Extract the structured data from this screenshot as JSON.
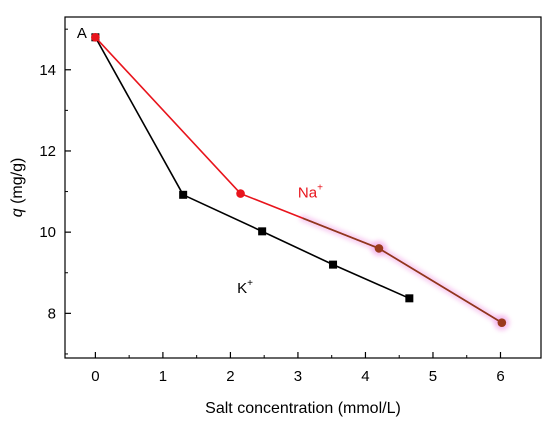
{
  "chart_data": {
    "type": "line",
    "xlabel": "Salt concentration (mmol/L)",
    "ylabel": {
      "symbol": "q",
      "unit": " (mg/g)"
    },
    "xlim": [
      -0.45,
      6.6
    ],
    "ylim": [
      6.9,
      15.3
    ],
    "xticks": [
      0,
      1,
      2,
      3,
      4,
      5,
      6
    ],
    "yticks": [
      8,
      10,
      12,
      14
    ],
    "grid": false,
    "annotations": [
      {
        "text": "A",
        "x": -0.2,
        "y": 14.9
      }
    ],
    "series": [
      {
        "name": "K",
        "name_sup": "+",
        "color": "#000000",
        "marker": "square",
        "x": [
          0,
          1.3,
          2.47,
          3.52,
          4.65
        ],
        "y": [
          14.8,
          10.92,
          10.02,
          9.2,
          8.37
        ],
        "label_pos": {
          "x": 2.1,
          "y": 8.5
        }
      },
      {
        "name": "Na",
        "name_sup": "+",
        "color": "#e8141c",
        "marker": "circle",
        "x": [
          0,
          2.15,
          4.2,
          6.02
        ],
        "y": [
          14.8,
          10.95,
          9.6,
          7.77
        ],
        "label_pos": {
          "x": 3.0,
          "y": 10.85
        }
      }
    ]
  }
}
